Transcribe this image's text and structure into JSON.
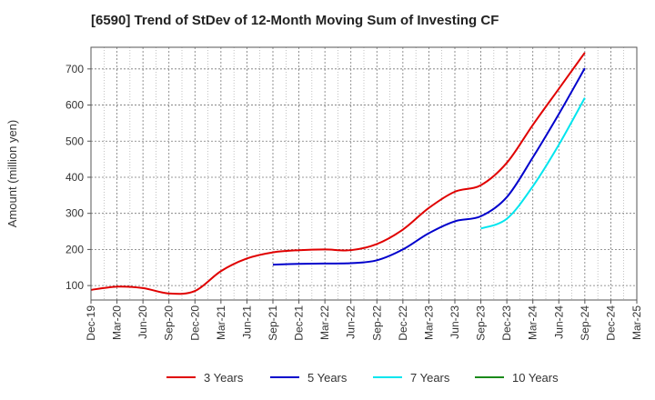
{
  "chart_data": {
    "type": "line",
    "title": "[6590]  Trend of StDev of 12-Month Moving Sum of Investing CF",
    "xlabel": "",
    "ylabel": "Amount (million yen)",
    "ylim": [
      60,
      760
    ],
    "yticks": [
      100,
      200,
      300,
      400,
      500,
      600,
      700
    ],
    "categories": [
      "Dec-19",
      "Mar-20",
      "Jun-20",
      "Sep-20",
      "Dec-20",
      "Mar-21",
      "Jun-21",
      "Sep-21",
      "Dec-21",
      "Mar-22",
      "Jun-22",
      "Sep-22",
      "Dec-22",
      "Mar-23",
      "Jun-23",
      "Sep-23",
      "Dec-23",
      "Mar-24",
      "Jun-24",
      "Sep-24",
      "Dec-24",
      "Mar-25"
    ],
    "grid": true,
    "legend_position": "bottom",
    "series": [
      {
        "name": "3 Years",
        "color": "#e00000",
        "values": [
          88,
          97,
          93,
          78,
          85,
          140,
          175,
          192,
          198,
          200,
          198,
          215,
          255,
          315,
          360,
          378,
          440,
          545,
          645,
          745,
          null,
          null
        ]
      },
      {
        "name": "5 Years",
        "color": "#0000cc",
        "values": [
          null,
          null,
          null,
          null,
          null,
          null,
          null,
          158,
          160,
          161,
          162,
          170,
          200,
          245,
          278,
          292,
          345,
          455,
          575,
          702,
          null,
          null
        ]
      },
      {
        "name": "7 Years",
        "color": "#00e5ee",
        "values": [
          null,
          null,
          null,
          null,
          null,
          null,
          null,
          null,
          null,
          null,
          null,
          null,
          null,
          null,
          null,
          258,
          285,
          375,
          490,
          620,
          null,
          null
        ]
      },
      {
        "name": "10 Years",
        "color": "#1a8a1a",
        "values": [
          null,
          null,
          null,
          null,
          null,
          null,
          null,
          null,
          null,
          null,
          null,
          null,
          null,
          null,
          null,
          null,
          null,
          null,
          null,
          null,
          null,
          null
        ]
      }
    ]
  }
}
